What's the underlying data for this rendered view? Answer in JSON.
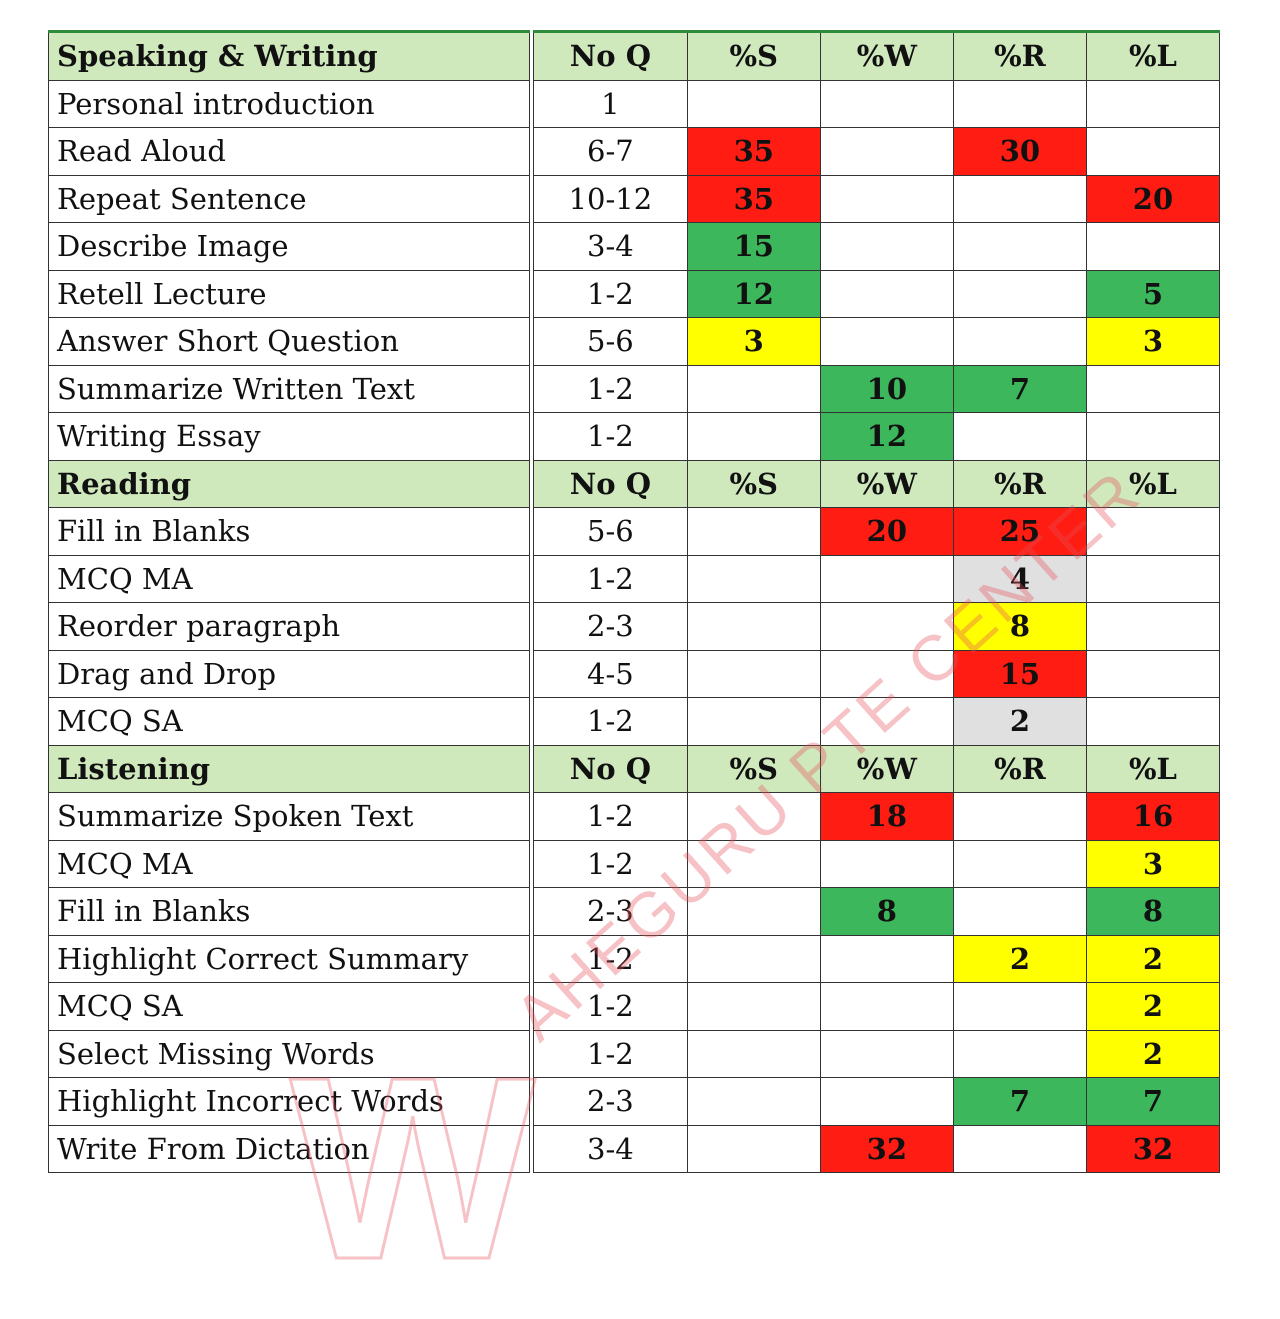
{
  "colors": {
    "red": "#ff1c12",
    "green": "#3db75c",
    "yellow": "#ffff00",
    "gray": "#e0e0e0",
    "header": "#cfe9bd"
  },
  "watermark": {
    "text": "AHEGURU PTE CENTER",
    "logo_letter": "W"
  },
  "sections": [
    {
      "title": "Speaking & Writing",
      "headers": [
        "No Q",
        "%S",
        "%W",
        "%R",
        "%L"
      ],
      "rows": [
        {
          "task": "Personal introduction",
          "noq": "1",
          "cells": [
            null,
            null,
            null,
            null
          ]
        },
        {
          "task": "Read Aloud",
          "noq": "6-7",
          "cells": [
            {
              "v": "35",
              "c": "red"
            },
            null,
            {
              "v": "30",
              "c": "red"
            },
            null
          ]
        },
        {
          "task": "Repeat Sentence",
          "noq": "10-12",
          "cells": [
            {
              "v": "35",
              "c": "red"
            },
            null,
            null,
            {
              "v": "20",
              "c": "red"
            }
          ]
        },
        {
          "task": "Describe Image",
          "noq": "3-4",
          "cells": [
            {
              "v": "15",
              "c": "green"
            },
            null,
            null,
            null
          ]
        },
        {
          "task": "Retell Lecture",
          "noq": "1-2",
          "cells": [
            {
              "v": "12",
              "c": "green"
            },
            null,
            null,
            {
              "v": "5",
              "c": "green"
            }
          ]
        },
        {
          "task": "Answer Short Question",
          "noq": "5-6",
          "cells": [
            {
              "v": "3",
              "c": "yellow"
            },
            null,
            null,
            {
              "v": "3",
              "c": "yellow"
            }
          ]
        },
        {
          "task": "Summarize Written Text",
          "noq": "1-2",
          "cells": [
            null,
            {
              "v": "10",
              "c": "green"
            },
            {
              "v": "7",
              "c": "green"
            },
            null
          ]
        },
        {
          "task": "Writing Essay",
          "noq": "1-2",
          "cells": [
            null,
            {
              "v": "12",
              "c": "green"
            },
            null,
            null
          ]
        }
      ]
    },
    {
      "title": "Reading",
      "headers": [
        "No Q",
        "%S",
        "%W",
        "%R",
        "%L"
      ],
      "rows": [
        {
          "task": "Fill in Blanks",
          "noq": "5-6",
          "cells": [
            null,
            {
              "v": "20",
              "c": "red"
            },
            {
              "v": "25",
              "c": "red"
            },
            null
          ]
        },
        {
          "task": "MCQ MA",
          "noq": "1-2",
          "cells": [
            null,
            null,
            {
              "v": "4",
              "c": "gray"
            },
            null
          ]
        },
        {
          "task": "Reorder paragraph",
          "noq": "2-3",
          "cells": [
            null,
            null,
            {
              "v": "8",
              "c": "yellow"
            },
            null
          ]
        },
        {
          "task": "Drag and Drop",
          "noq": "4-5",
          "cells": [
            null,
            null,
            {
              "v": "15",
              "c": "red"
            },
            null
          ]
        },
        {
          "task": "MCQ SA",
          "noq": "1-2",
          "cells": [
            null,
            null,
            {
              "v": "2",
              "c": "gray"
            },
            null
          ]
        }
      ]
    },
    {
      "title": "Listening",
      "headers": [
        "No Q",
        "%S",
        "%W",
        "%R",
        "%L"
      ],
      "rows": [
        {
          "task": "Summarize Spoken Text",
          "noq": "1-2",
          "cells": [
            null,
            {
              "v": "18",
              "c": "red"
            },
            null,
            {
              "v": "16",
              "c": "red"
            }
          ]
        },
        {
          "task": "MCQ MA",
          "noq": "1-2",
          "cells": [
            null,
            null,
            null,
            {
              "v": "3",
              "c": "yellow"
            }
          ]
        },
        {
          "task": "Fill in Blanks",
          "noq": "2-3",
          "cells": [
            null,
            {
              "v": "8",
              "c": "green"
            },
            null,
            {
              "v": "8",
              "c": "green"
            }
          ]
        },
        {
          "task": "Highlight Correct Summary",
          "noq": "1-2",
          "cells": [
            null,
            null,
            {
              "v": "2",
              "c": "yellow"
            },
            {
              "v": "2",
              "c": "yellow"
            }
          ]
        },
        {
          "task": "MCQ SA",
          "noq": "1-2",
          "cells": [
            null,
            null,
            null,
            {
              "v": "2",
              "c": "yellow"
            }
          ]
        },
        {
          "task": "Select Missing Words",
          "noq": "1-2",
          "cells": [
            null,
            null,
            null,
            {
              "v": "2",
              "c": "yellow"
            }
          ]
        },
        {
          "task": "Highlight Incorrect Words",
          "noq": "2-3",
          "cells": [
            null,
            null,
            {
              "v": "7",
              "c": "green"
            },
            {
              "v": "7",
              "c": "green"
            }
          ]
        },
        {
          "task": "Write From Dictation",
          "noq": "3-4",
          "cells": [
            null,
            {
              "v": "32",
              "c": "red"
            },
            null,
            {
              "v": "32",
              "c": "red"
            }
          ]
        }
      ]
    }
  ]
}
